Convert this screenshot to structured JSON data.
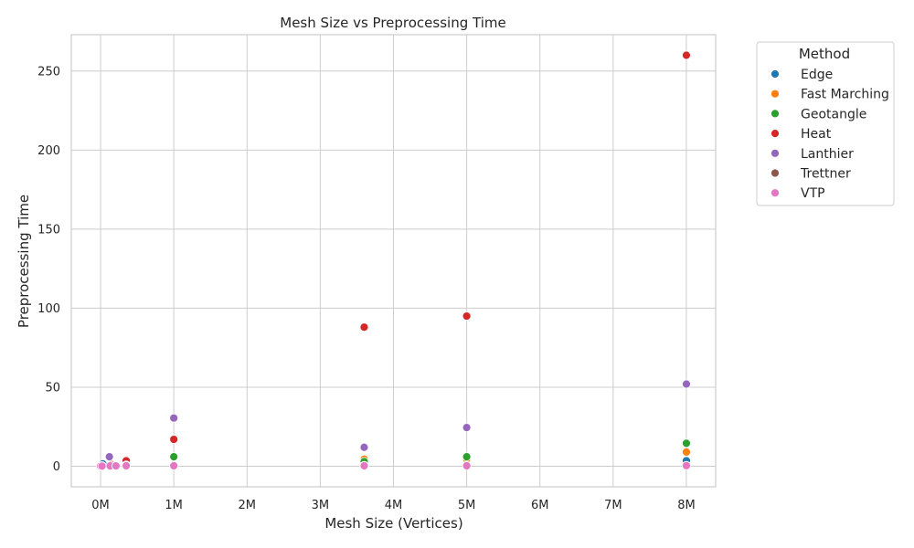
{
  "chart_data": {
    "type": "scatter",
    "title": "Mesh Size vs Preprocessing Time",
    "xlabel": "Mesh Size (Vertices)",
    "ylabel": "Preprocessing Time",
    "xlim": [
      -400000,
      8400000
    ],
    "ylim": [
      -13,
      273
    ],
    "x_ticks": [
      0,
      1000000,
      2000000,
      3000000,
      4000000,
      5000000,
      6000000,
      7000000,
      8000000
    ],
    "x_tick_labels": [
      "0M",
      "1M",
      "2M",
      "3M",
      "4M",
      "5M",
      "6M",
      "7M",
      "8M"
    ],
    "y_ticks": [
      0,
      50,
      100,
      150,
      200,
      250
    ],
    "y_tick_labels": [
      "0",
      "50",
      "100",
      "150",
      "200",
      "250"
    ],
    "grid": true,
    "legend": {
      "title": "Method",
      "placement": "outside-top-right"
    },
    "series": [
      {
        "name": "Edge",
        "color": "#1f77b4",
        "points": [
          [
            30000,
            1.5
          ],
          [
            150000,
            0.5
          ],
          [
            350000,
            1.0
          ],
          [
            1000000,
            0.4
          ],
          [
            3600000,
            1.0
          ],
          [
            5000000,
            1.0
          ],
          [
            8000000,
            3.5
          ]
        ]
      },
      {
        "name": "Fast Marching",
        "color": "#ff7f0e",
        "points": [
          [
            20000,
            0.2
          ],
          [
            150000,
            0.5
          ],
          [
            350000,
            1.5
          ],
          [
            1000000,
            0.5
          ],
          [
            3600000,
            4.5
          ],
          [
            5000000,
            4.5
          ],
          [
            8000000,
            9.0
          ]
        ]
      },
      {
        "name": "Geotangle",
        "color": "#2ca02c",
        "points": [
          [
            20000,
            0.2
          ],
          [
            150000,
            0.6
          ],
          [
            350000,
            1.2
          ],
          [
            1000000,
            6.0
          ],
          [
            3600000,
            3.0
          ],
          [
            5000000,
            6.0
          ],
          [
            8000000,
            14.5
          ]
        ]
      },
      {
        "name": "Heat",
        "color": "#d62728",
        "points": [
          [
            20000,
            0.2
          ],
          [
            150000,
            1.0
          ],
          [
            350000,
            3.5
          ],
          [
            1000000,
            17.0
          ],
          [
            3600000,
            88.0
          ],
          [
            5000000,
            95.0
          ],
          [
            8000000,
            260.0
          ]
        ]
      },
      {
        "name": "Lanthier",
        "color": "#9467bd",
        "points": [
          [
            20000,
            0.3
          ],
          [
            120000,
            6.0
          ],
          [
            350000,
            0.8
          ],
          [
            1000000,
            30.5
          ],
          [
            3600000,
            12.0
          ],
          [
            5000000,
            24.5
          ],
          [
            8000000,
            52.0
          ]
        ]
      },
      {
        "name": "Trettner",
        "color": "#8c564b",
        "points": [
          [
            20000,
            0.1
          ],
          [
            150000,
            0.3
          ],
          [
            350000,
            0.4
          ],
          [
            1000000,
            0.3
          ],
          [
            3600000,
            0.5
          ],
          [
            5000000,
            0.4
          ],
          [
            8000000,
            0.5
          ]
        ]
      },
      {
        "name": "VTP",
        "color": "#e377c2",
        "points": [
          [
            0,
            0.1
          ],
          [
            20000,
            0.1
          ],
          [
            130000,
            0.2
          ],
          [
            210000,
            0.2
          ],
          [
            350000,
            0.3
          ],
          [
            1000000,
            0.3
          ],
          [
            3600000,
            0.3
          ],
          [
            5000000,
            0.3
          ],
          [
            8000000,
            0.4
          ]
        ]
      }
    ]
  }
}
